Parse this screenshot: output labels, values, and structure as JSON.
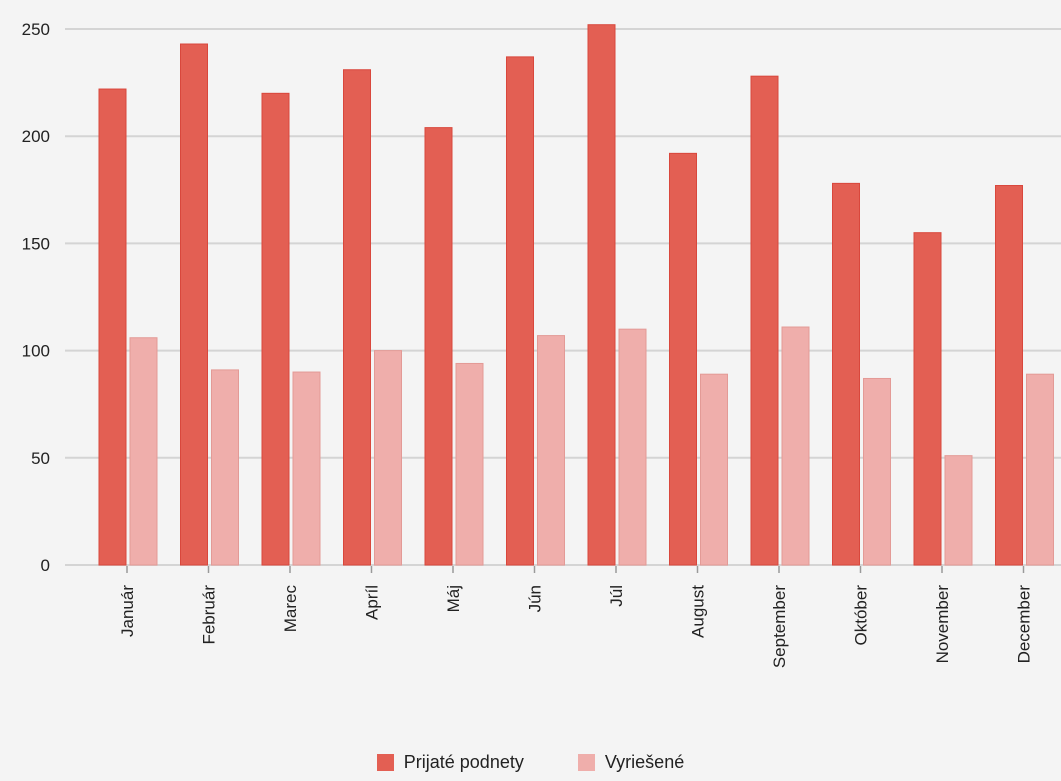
{
  "chart_data": {
    "type": "bar",
    "categories": [
      "Január",
      "Február",
      "Marec",
      "Apríl",
      "Máj",
      "Jún",
      "Júl",
      "August",
      "September",
      "Október",
      "November",
      "December"
    ],
    "series": [
      {
        "name": "Prijaté podnety",
        "color": "#e35f53",
        "values": [
          222,
          243,
          220,
          231,
          204,
          237,
          252,
          192,
          228,
          178,
          155,
          177
        ]
      },
      {
        "name": "Vyriešené",
        "color": "#efaeab",
        "values": [
          106,
          91,
          90,
          100,
          94,
          107,
          110,
          89,
          111,
          87,
          51,
          89
        ]
      }
    ],
    "y_ticks": [
      "0",
      "50",
      "100",
      "150",
      "200",
      "250"
    ],
    "ylim": [
      0,
      250
    ],
    "grid": true,
    "legend_position": "bottom-center",
    "title": "",
    "xlabel": "",
    "ylabel": ""
  }
}
